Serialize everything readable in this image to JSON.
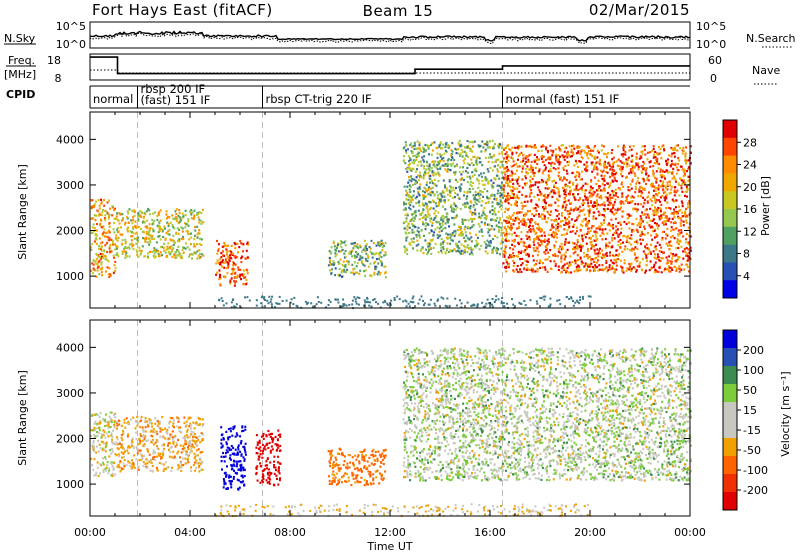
{
  "header": {
    "site": "Fort Hays East (fitACF)",
    "beam": "Beam 15",
    "date": "02/Mar/2015"
  },
  "strip_panels": {
    "nsky_label": "N.Sky",
    "nsearch_label": "N.Search",
    "noise_ticks": [
      "10^5",
      "10^0"
    ],
    "freq_label_1": "Freq.",
    "freq_label_2": "[MHz]",
    "freq_ticks": [
      "18",
      "8"
    ],
    "nave_label": "Nave",
    "nave_ticks": [
      "60",
      "0"
    ],
    "cpid_label": "CPID"
  },
  "modes": [
    {
      "start_h": 0.0,
      "lines": [
        "normal"
      ]
    },
    {
      "start_h": 1.9,
      "lines": [
        "rbsp 200 IF",
        "(fast) 151 IF"
      ]
    },
    {
      "start_h": 6.9,
      "lines": [
        "rbsp CT-trig 220 IF"
      ]
    },
    {
      "start_h": 16.5,
      "lines": [
        "normal (fast) 151 IF"
      ]
    }
  ],
  "power_colorbar": {
    "label": "Power [dB]",
    "ticks": [
      "28",
      "24",
      "20",
      "16",
      "12",
      "8",
      "4"
    ],
    "colors": [
      "#e00000",
      "#ff4500",
      "#ff8c00",
      "#f0a800",
      "#c8c820",
      "#96c850",
      "#50a060",
      "#3c7888",
      "#2850b4",
      "#0000e6"
    ]
  },
  "velocity_colorbar": {
    "label": "Velocity [m s⁻¹]",
    "ticks": [
      "200",
      "100",
      "50",
      "15",
      "-15",
      "-50",
      "-100",
      "-200"
    ],
    "colors": [
      "#0000dc",
      "#2850b4",
      "#3c8c50",
      "#7ccd3c",
      "#c8c8c0",
      "#c8c8c0",
      "#f0a000",
      "#ff6400",
      "#f03000",
      "#e00000"
    ]
  },
  "chart_data": [
    {
      "type": "heatmap",
      "title": "Power",
      "xlabel": "Time UT",
      "ylabel": "Slant Range [km]",
      "xlim_hours": [
        0,
        24
      ],
      "ylim_km": [
        300,
        4600
      ],
      "yticks": [
        1000,
        2000,
        3000,
        4000
      ],
      "xticks": [
        "00:00",
        "04:00",
        "08:00",
        "12:00",
        "16:00",
        "20:00",
        "00:00"
      ],
      "colorbar_unit": "dB",
      "regions": [
        {
          "t": [
            0.0,
            1.0
          ],
          "r": [
            1000,
            2700
          ],
          "mode_value": 20
        },
        {
          "t": [
            1.0,
            4.5
          ],
          "r": [
            1400,
            2500
          ],
          "mode_value": 16
        },
        {
          "t": [
            5.0,
            6.3
          ],
          "r": [
            800,
            1800
          ],
          "mode_value": 24
        },
        {
          "t": [
            9.5,
            11.8
          ],
          "r": [
            1000,
            1800
          ],
          "mode_value": 12
        },
        {
          "t": [
            12.5,
            16.5
          ],
          "r": [
            1500,
            4000
          ],
          "mode_value": 12
        },
        {
          "t": [
            16.5,
            24.0
          ],
          "r": [
            1100,
            3900
          ],
          "mode_value": 24
        }
      ]
    },
    {
      "type": "heatmap",
      "title": "Velocity",
      "xlabel": "Time UT",
      "ylabel": "Slant Range [km]",
      "xlim_hours": [
        0,
        24
      ],
      "ylim_km": [
        300,
        4600
      ],
      "yticks": [
        1000,
        2000,
        3000,
        4000
      ],
      "xticks": [
        "00:00",
        "04:00",
        "08:00",
        "12:00",
        "16:00",
        "20:00",
        "00:00"
      ],
      "colorbar_unit": "m s-1",
      "regions": [
        {
          "t": [
            0.0,
            1.0
          ],
          "r": [
            1200,
            2600
          ],
          "mode_value": -15
        },
        {
          "t": [
            1.0,
            4.5
          ],
          "r": [
            1300,
            2500
          ],
          "mode_value": -50
        },
        {
          "t": [
            5.2,
            6.2
          ],
          "r": [
            900,
            2300
          ],
          "mode_value": 200
        },
        {
          "t": [
            6.6,
            7.6
          ],
          "r": [
            1000,
            2200
          ],
          "mode_value": -200
        },
        {
          "t": [
            9.5,
            11.8
          ],
          "r": [
            1000,
            1800
          ],
          "mode_value": -100
        },
        {
          "t": [
            12.5,
            24.0
          ],
          "r": [
            1100,
            4000
          ],
          "mode_value": 0
        }
      ]
    }
  ]
}
